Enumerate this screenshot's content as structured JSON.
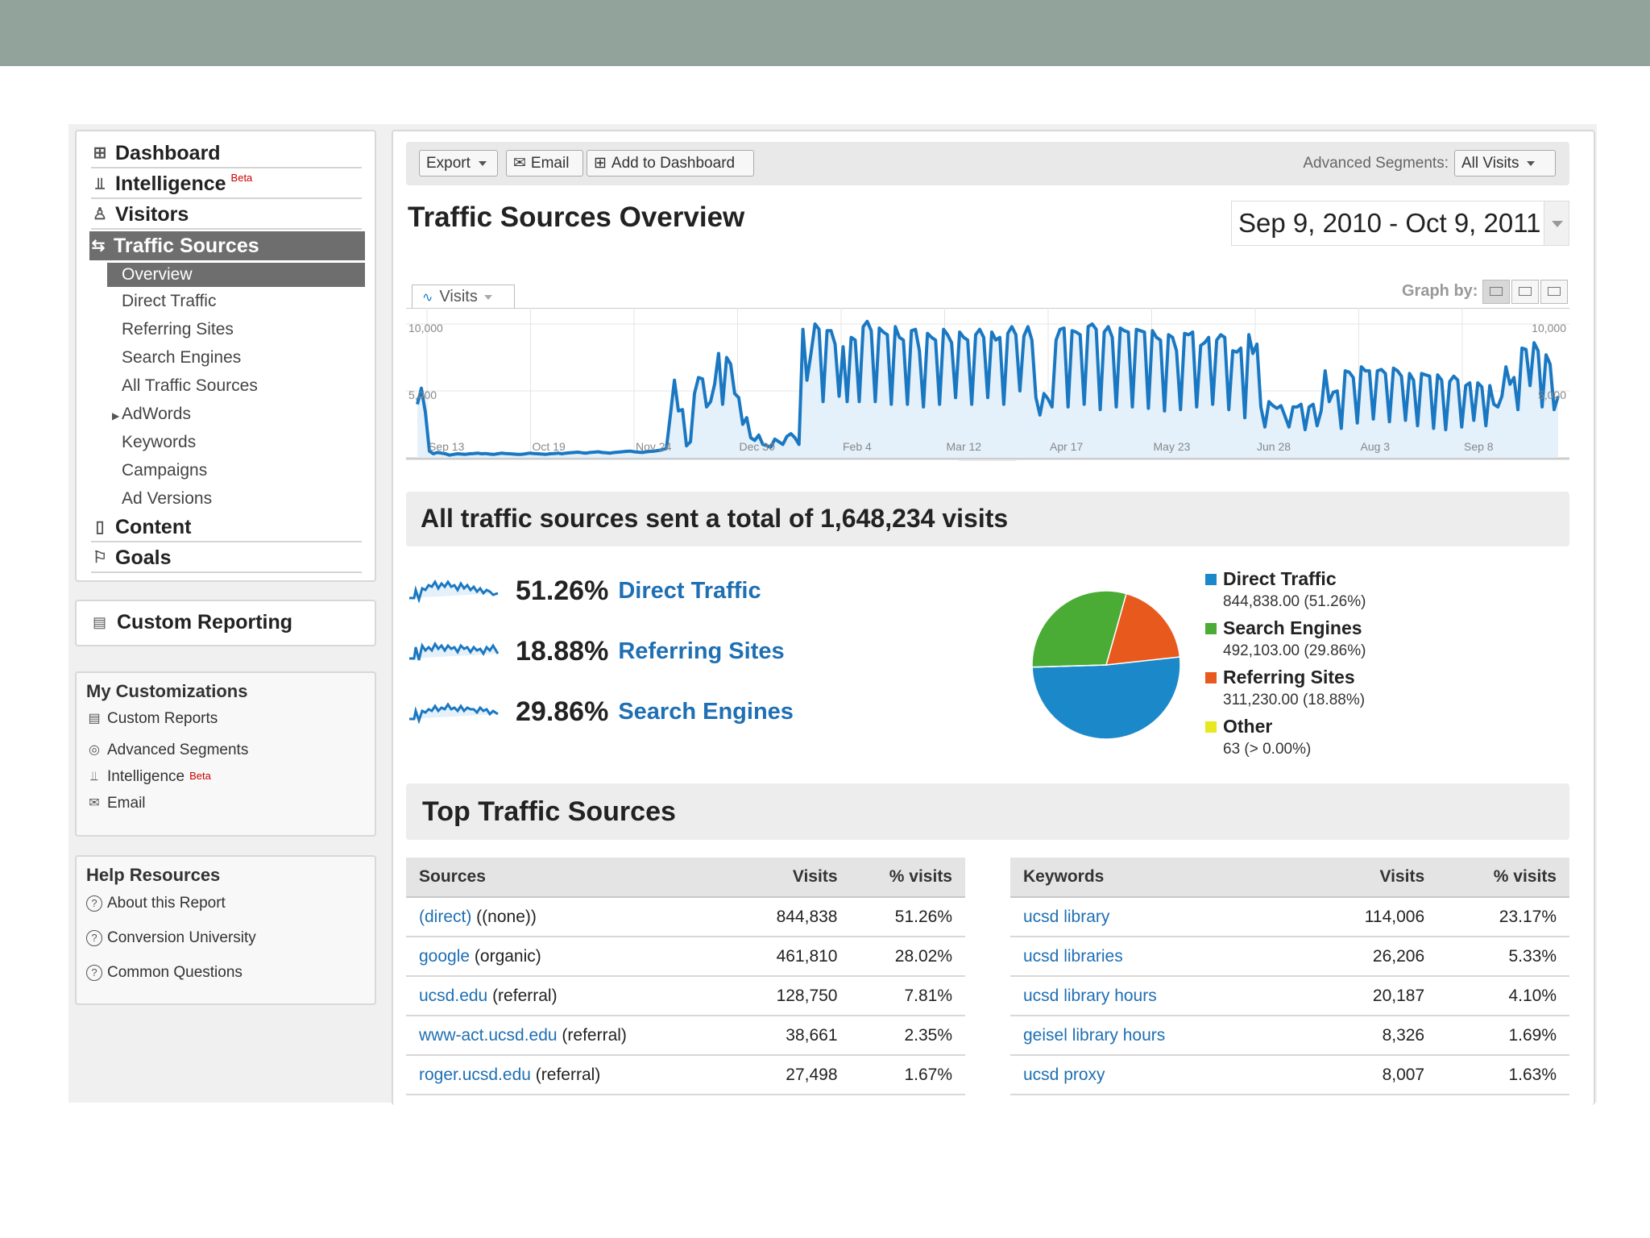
{
  "nav": {
    "dashboard": "Dashboard",
    "intelligence": "Intelligence",
    "beta": "Beta",
    "visitors": "Visitors",
    "traffic_sources": "Traffic Sources",
    "sub": [
      "Overview",
      "Direct Traffic",
      "Referring Sites",
      "Search Engines",
      "All Traffic Sources",
      "AdWords",
      "Keywords",
      "Campaigns",
      "Ad Versions"
    ],
    "content": "Content",
    "goals": "Goals"
  },
  "custom_reporting": "Custom Reporting",
  "my_customizations": {
    "title": "My Customizations",
    "items": [
      "Custom Reports",
      "Advanced Segments",
      "Intelligence",
      "Email"
    ],
    "beta": "Beta"
  },
  "help": {
    "title": "Help Resources",
    "items": [
      "About this Report",
      "Conversion University",
      "Common Questions"
    ]
  },
  "toolbar": {
    "export": "Export",
    "email": "Email",
    "add_dashboard": "Add to Dashboard",
    "segments_label": "Advanced Segments:",
    "segments_value": "All Visits"
  },
  "title": "Traffic Sources Overview",
  "date_range": "Sep 9, 2010 - Oct 9, 2011",
  "graph": {
    "tab": "Visits",
    "graph_by": "Graph by:"
  },
  "chart_data": {
    "type": "area",
    "series": [
      {
        "name": "Visits",
        "color": "#1a78c2"
      }
    ],
    "y_left_ticks": [
      "10,000",
      "5,000"
    ],
    "y_right_ticks": [
      "10,000",
      "5,000"
    ],
    "ylim": [
      0,
      10000
    ],
    "x_ticks": [
      "Sep 13",
      "Oct 19",
      "Nov 24",
      "Dec 30",
      "Feb 4",
      "Mar 12",
      "Apr 17",
      "May 23",
      "Jun 28",
      "Aug 3",
      "Sep 8"
    ],
    "values": [
      4000,
      5200,
      3400,
      500,
      300,
      400,
      350,
      300,
      200,
      250,
      300,
      280,
      260,
      300,
      320,
      350,
      300,
      320,
      280,
      250,
      300,
      350,
      320,
      300,
      280,
      250,
      260,
      300,
      350,
      320,
      300,
      280,
      260,
      300,
      320,
      350,
      300,
      350,
      380,
      400,
      420,
      380,
      350,
      400,
      420,
      450,
      400,
      380,
      350,
      400,
      420,
      450,
      480,
      500,
      450,
      420,
      400,
      450,
      480,
      500,
      550,
      600,
      700,
      3200,
      5800,
      3500,
      3600,
      900,
      1200,
      4800,
      6000,
      5900,
      3800,
      4200,
      5500,
      7800,
      4000,
      7500,
      7000,
      4800,
      4500,
      2500,
      3000,
      1500,
      1300,
      1700,
      1000,
      900,
      800,
      1400,
      1200,
      1000,
      1600,
      1800,
      1500,
      1000,
      9600,
      5800,
      7800,
      10000,
      9600,
      4200,
      9500,
      9500,
      8500,
      4600,
      8300,
      4200,
      9000,
      8800,
      4200,
      9800,
      10200,
      9500,
      4200,
      9700,
      9400,
      9200,
      4000,
      9800,
      9000,
      8800,
      4000,
      9500,
      9600,
      8000,
      3800,
      9300,
      9000,
      8800,
      4000,
      9600,
      9200,
      8600,
      4500,
      9400,
      9000,
      8800,
      4000,
      9200,
      9600,
      9000,
      4500,
      9400,
      8800,
      9000,
      4000,
      9300,
      9800,
      9200,
      5000,
      9100,
      9800,
      8800,
      4500,
      3200,
      4800,
      4400,
      3800,
      8800,
      9600,
      9700,
      3800,
      9500,
      9400,
      9200,
      4000,
      9800,
      10000,
      9600,
      3600,
      9400,
      9800,
      9000,
      3800,
      9700,
      9500,
      9400,
      3800,
      9600,
      9500,
      9400,
      3700,
      9500,
      9000,
      8800,
      3500,
      9200,
      9000,
      8000,
      3600,
      9300,
      9200,
      9400,
      3800,
      8400,
      8600,
      9000,
      4000,
      8800,
      9200,
      9000,
      3600,
      8000,
      7900,
      8200,
      3000,
      9200,
      7800,
      8500,
      3800,
      2300,
      4200,
      3900,
      3700,
      3900,
      3100,
      2300,
      3800,
      3800,
      4000,
      2100,
      3800,
      4000,
      2400,
      3500,
      6500,
      4200,
      4900,
      5000,
      2200,
      6500,
      6400,
      6000,
      2600,
      6800,
      6500,
      6500,
      2900,
      6500,
      6600,
      6300,
      2700,
      6700,
      6500,
      6100,
      2800,
      6300,
      5800,
      2400,
      6300,
      6200,
      6100,
      2200,
      6200,
      5800,
      2100,
      5700,
      6100,
      5800,
      2300,
      5400,
      5600,
      2800,
      5600,
      5300,
      2400,
      5400,
      4000,
      3800,
      4600,
      6800,
      5500,
      6000,
      3600,
      8200,
      8100,
      5400,
      8600,
      8000,
      3800,
      7700,
      7000,
      3600,
      4600
    ]
  },
  "summary": {
    "total_text": "All traffic sources sent a total of 1,648,234 visits",
    "rows": [
      {
        "pct": "51.26%",
        "name": "Direct Traffic"
      },
      {
        "pct": "18.88%",
        "name": "Referring Sites"
      },
      {
        "pct": "29.86%",
        "name": "Search Engines"
      }
    ]
  },
  "pie": {
    "slices": [
      {
        "name": "Direct Traffic",
        "value": 844838.0,
        "label": "844,838.00 (51.26%)",
        "color": "#1b89c9"
      },
      {
        "name": "Search Engines",
        "value": 492103.0,
        "label": "492,103.00 (29.86%)",
        "color": "#4aab35"
      },
      {
        "name": "Referring Sites",
        "value": 311230.0,
        "label": "311,230.00 (18.88%)",
        "color": "#e8591e"
      },
      {
        "name": "Other",
        "value": 63,
        "label": "63 (> 0.00%)",
        "color": "#e8e81e"
      }
    ]
  },
  "top": {
    "title": "Top Traffic Sources",
    "sources_headers": [
      "Sources",
      "Visits",
      "% visits"
    ],
    "sources": [
      {
        "link": "(direct)",
        "rest": " ((none))",
        "visits": "844,838",
        "pct": "51.26%"
      },
      {
        "link": "google",
        "rest": " (organic)",
        "visits": "461,810",
        "pct": "28.02%"
      },
      {
        "link": "ucsd.edu",
        "rest": " (referral)",
        "visits": "128,750",
        "pct": "7.81%"
      },
      {
        "link": "www-act.ucsd.edu",
        "rest": " (referral)",
        "visits": "38,661",
        "pct": "2.35%"
      },
      {
        "link": "roger.ucsd.edu",
        "rest": " (referral)",
        "visits": "27,498",
        "pct": "1.67%"
      }
    ],
    "keywords_headers": [
      "Keywords",
      "Visits",
      "% visits"
    ],
    "keywords": [
      {
        "link": "ucsd library",
        "visits": "114,006",
        "pct": "23.17%"
      },
      {
        "link": "ucsd libraries",
        "visits": "26,206",
        "pct": "5.33%"
      },
      {
        "link": "ucsd library hours",
        "visits": "20,187",
        "pct": "4.10%"
      },
      {
        "link": "geisel library hours",
        "visits": "8,326",
        "pct": "1.69%"
      },
      {
        "link": "ucsd proxy",
        "visits": "8,007",
        "pct": "1.63%"
      }
    ]
  }
}
